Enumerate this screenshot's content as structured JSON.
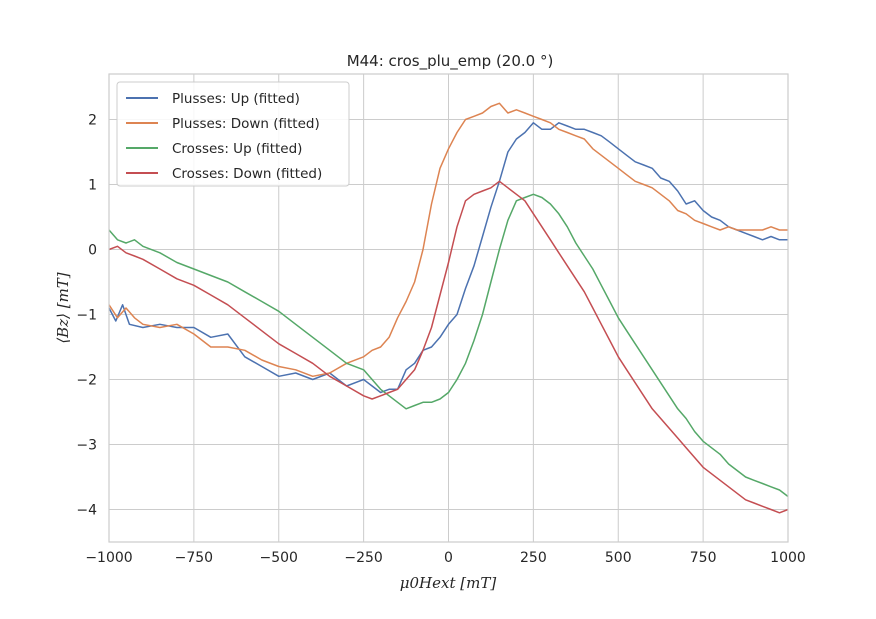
{
  "chart_data": {
    "type": "line",
    "title": "M44: cros_plu_emp (20.0 °)",
    "xlabel": "μ0Hext [mT]",
    "ylabel": "⟨Bz⟩ [mT]",
    "xlim": [
      -1000,
      1000
    ],
    "ylim": [
      -4.5,
      2.7
    ],
    "xticks": [
      -1000,
      -750,
      -500,
      -250,
      0,
      250,
      500,
      750,
      1000
    ],
    "xtick_labels": [
      "−1000",
      "−750",
      "−500",
      "−250",
      "0",
      "250",
      "500",
      "750",
      "1000"
    ],
    "yticks": [
      -4,
      -3,
      -2,
      -1,
      0,
      1,
      2
    ],
    "ytick_labels": [
      "−4",
      "−3",
      "−2",
      "−1",
      "0",
      "1",
      "2"
    ],
    "grid": true,
    "legend_position": "top-left",
    "series": [
      {
        "name": "Plusses: Up (fitted)",
        "color": "#4C72B0",
        "x": [
          -1000,
          -980,
          -960,
          -940,
          -900,
          -850,
          -800,
          -750,
          -700,
          -650,
          -600,
          -550,
          -500,
          -450,
          -400,
          -350,
          -300,
          -250,
          -225,
          -200,
          -175,
          -150,
          -125,
          -100,
          -75,
          -50,
          -25,
          0,
          25,
          50,
          75,
          100,
          125,
          150,
          175,
          200,
          225,
          250,
          275,
          300,
          325,
          350,
          375,
          400,
          425,
          450,
          475,
          500,
          525,
          550,
          575,
          600,
          625,
          650,
          675,
          700,
          725,
          750,
          775,
          800,
          825,
          850,
          875,
          900,
          925,
          950,
          975,
          1000
        ],
        "y": [
          -0.9,
          -1.1,
          -0.85,
          -1.15,
          -1.2,
          -1.15,
          -1.2,
          -1.2,
          -1.35,
          -1.3,
          -1.65,
          -1.8,
          -1.95,
          -1.9,
          -2.0,
          -1.9,
          -2.1,
          -2.0,
          -2.1,
          -2.2,
          -2.15,
          -2.15,
          -1.85,
          -1.75,
          -1.55,
          -1.5,
          -1.35,
          -1.15,
          -1.0,
          -0.6,
          -0.25,
          0.2,
          0.65,
          1.05,
          1.5,
          1.7,
          1.8,
          1.95,
          1.85,
          1.85,
          1.95,
          1.9,
          1.85,
          1.85,
          1.8,
          1.75,
          1.65,
          1.55,
          1.45,
          1.35,
          1.3,
          1.25,
          1.1,
          1.05,
          0.9,
          0.7,
          0.75,
          0.6,
          0.5,
          0.45,
          0.35,
          0.3,
          0.25,
          0.2,
          0.15,
          0.2,
          0.15,
          0.15
        ]
      },
      {
        "name": "Plusses: Down (fitted)",
        "color": "#DD8452",
        "x": [
          -1000,
          -975,
          -950,
          -925,
          -900,
          -850,
          -800,
          -750,
          -700,
          -650,
          -600,
          -550,
          -500,
          -450,
          -400,
          -350,
          -300,
          -250,
          -225,
          -200,
          -175,
          -150,
          -125,
          -100,
          -75,
          -50,
          -25,
          0,
          25,
          50,
          75,
          100,
          125,
          150,
          175,
          200,
          225,
          250,
          275,
          300,
          325,
          350,
          375,
          400,
          425,
          450,
          475,
          500,
          525,
          550,
          575,
          600,
          625,
          650,
          675,
          700,
          725,
          750,
          775,
          800,
          825,
          850,
          875,
          900,
          925,
          950,
          975,
          1000
        ],
        "y": [
          -0.85,
          -1.05,
          -0.9,
          -1.05,
          -1.15,
          -1.2,
          -1.15,
          -1.3,
          -1.5,
          -1.5,
          -1.55,
          -1.7,
          -1.8,
          -1.85,
          -1.95,
          -1.9,
          -1.75,
          -1.65,
          -1.55,
          -1.5,
          -1.35,
          -1.05,
          -0.8,
          -0.5,
          0.0,
          0.7,
          1.25,
          1.55,
          1.8,
          2.0,
          2.05,
          2.1,
          2.2,
          2.25,
          2.1,
          2.15,
          2.1,
          2.05,
          2.0,
          1.95,
          1.85,
          1.8,
          1.75,
          1.7,
          1.55,
          1.45,
          1.35,
          1.25,
          1.15,
          1.05,
          1.0,
          0.95,
          0.85,
          0.75,
          0.6,
          0.55,
          0.45,
          0.4,
          0.35,
          0.3,
          0.35,
          0.3,
          0.3,
          0.3,
          0.3,
          0.35,
          0.3,
          0.3
        ]
      },
      {
        "name": "Crosses: Up (fitted)",
        "color": "#55A868",
        "x": [
          -1000,
          -975,
          -950,
          -925,
          -900,
          -850,
          -800,
          -750,
          -700,
          -650,
          -600,
          -550,
          -500,
          -450,
          -400,
          -350,
          -300,
          -250,
          -225,
          -200,
          -175,
          -150,
          -125,
          -100,
          -75,
          -50,
          -25,
          0,
          25,
          50,
          75,
          100,
          125,
          150,
          175,
          200,
          225,
          250,
          275,
          300,
          325,
          350,
          375,
          400,
          425,
          450,
          475,
          500,
          525,
          550,
          575,
          600,
          625,
          650,
          675,
          700,
          725,
          750,
          775,
          800,
          825,
          850,
          875,
          900,
          925,
          950,
          975,
          1000
        ],
        "y": [
          0.3,
          0.15,
          0.1,
          0.15,
          0.05,
          -0.05,
          -0.2,
          -0.3,
          -0.4,
          -0.5,
          -0.65,
          -0.8,
          -0.95,
          -1.15,
          -1.35,
          -1.55,
          -1.75,
          -1.85,
          -2.0,
          -2.15,
          -2.25,
          -2.35,
          -2.45,
          -2.4,
          -2.35,
          -2.35,
          -2.3,
          -2.2,
          -2.0,
          -1.75,
          -1.4,
          -1.0,
          -0.5,
          0.0,
          0.45,
          0.75,
          0.8,
          0.85,
          0.8,
          0.7,
          0.55,
          0.35,
          0.1,
          -0.1,
          -0.3,
          -0.55,
          -0.8,
          -1.05,
          -1.25,
          -1.45,
          -1.65,
          -1.85,
          -2.05,
          -2.25,
          -2.45,
          -2.6,
          -2.8,
          -2.95,
          -3.05,
          -3.15,
          -3.3,
          -3.4,
          -3.5,
          -3.55,
          -3.6,
          -3.65,
          -3.7,
          -3.8
        ]
      },
      {
        "name": "Crosses: Down (fitted)",
        "color": "#C44E52",
        "x": [
          -1000,
          -975,
          -950,
          -925,
          -900,
          -850,
          -800,
          -750,
          -700,
          -650,
          -600,
          -550,
          -500,
          -450,
          -400,
          -350,
          -300,
          -250,
          -225,
          -200,
          -175,
          -150,
          -125,
          -100,
          -75,
          -50,
          -25,
          0,
          25,
          50,
          75,
          100,
          125,
          150,
          175,
          200,
          225,
          250,
          275,
          300,
          325,
          350,
          375,
          400,
          425,
          450,
          475,
          500,
          525,
          550,
          575,
          600,
          625,
          650,
          675,
          700,
          725,
          750,
          775,
          800,
          825,
          850,
          875,
          900,
          925,
          950,
          975,
          1000
        ],
        "y": [
          0.0,
          0.05,
          -0.05,
          -0.1,
          -0.15,
          -0.3,
          -0.45,
          -0.55,
          -0.7,
          -0.85,
          -1.05,
          -1.25,
          -1.45,
          -1.6,
          -1.75,
          -1.95,
          -2.1,
          -2.25,
          -2.3,
          -2.25,
          -2.2,
          -2.15,
          -2.0,
          -1.85,
          -1.55,
          -1.2,
          -0.7,
          -0.2,
          0.35,
          0.75,
          0.85,
          0.9,
          0.95,
          1.05,
          0.95,
          0.85,
          0.75,
          0.55,
          0.35,
          0.15,
          -0.05,
          -0.25,
          -0.45,
          -0.65,
          -0.9,
          -1.15,
          -1.4,
          -1.65,
          -1.85,
          -2.05,
          -2.25,
          -2.45,
          -2.6,
          -2.75,
          -2.9,
          -3.05,
          -3.2,
          -3.35,
          -3.45,
          -3.55,
          -3.65,
          -3.75,
          -3.85,
          -3.9,
          -3.95,
          -4.0,
          -4.05,
          -4.0
        ]
      }
    ]
  }
}
